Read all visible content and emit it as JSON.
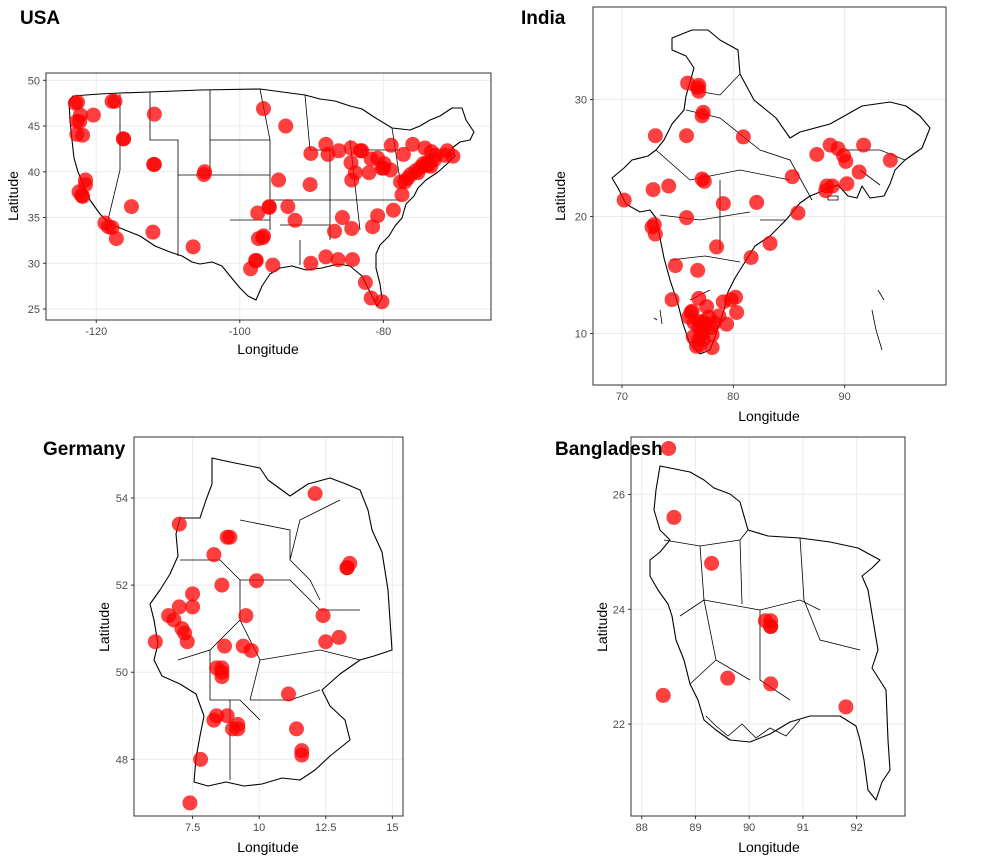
{
  "colors": {
    "point": "#ff0000",
    "grid": "#ebebeb",
    "frame": "#333333",
    "border": "#000000",
    "tick_text": "#4d4d4d"
  },
  "chart_data": [
    {
      "type": "scatter",
      "title": "USA",
      "xlabel": "Longitude",
      "ylabel": "Latitude",
      "xlim": [
        -127,
        -65
      ],
      "ylim": [
        23.8,
        50.8
      ],
      "xticks": [
        -120,
        -100,
        -80
      ],
      "yticks": [
        25,
        30,
        35,
        40,
        45,
        50
      ],
      "x": [
        -122.6,
        -122.3,
        -121.9,
        -122.7,
        -122.9,
        -120.4,
        -121.5,
        -116.2,
        -117.8,
        -111.9,
        -112.0,
        -105.0,
        -96.7,
        -93.6,
        -90.1,
        -87.7,
        -88.0,
        -86.2,
        -84.5,
        -83.0,
        -81.7,
        -80.0,
        -79.9,
        -77.0,
        -76.6,
        -75.2,
        -74.0,
        -73.9,
        -73.7,
        -72.7,
        -71.1,
        -71.4,
        -70.3,
        -77.4,
        -78.6,
        -80.8,
        -81.5,
        -84.4,
        -86.8,
        -90.1,
        -95.4,
        -96.8,
        -97.7,
        -98.5,
        -106.5,
        -112.1,
        -117.2,
        -118.3,
        -117.8,
        -121.9,
        -122.4,
        -80.2,
        -81.7,
        -82.5,
        -84.3,
        -86.3,
        -88.0,
        -85.7,
        -92.3,
        -90.2,
        -94.6,
        -95.9,
        -97.5,
        -104.9,
        -111.9,
        -116.2,
        -117.4,
        -122.7,
        -121.5,
        -93.3,
        -84.4,
        -83.9,
        -82.0,
        -80.8,
        -79.0,
        -77.6,
        -76.2,
        -75.5,
        -74.8,
        -74.4,
        -73.4,
        -72.9,
        -73.3,
        -74.2,
        -75.9,
        -77.2,
        -78.9,
        -80.2,
        -83.2,
        -84.5,
        -95.9,
        -96.7,
        -97.4,
        -97.8,
        -115.1,
        -118.8,
        -122.0,
        -122.2
      ],
      "y": [
        47.6,
        45.5,
        44.0,
        44.1,
        47.5,
        46.2,
        39.1,
        43.6,
        47.7,
        46.3,
        40.8,
        39.7,
        46.9,
        45.0,
        42.0,
        41.9,
        43.0,
        42.3,
        42.6,
        42.3,
        41.4,
        40.4,
        40.9,
        38.9,
        39.3,
        39.9,
        40.7,
        41.0,
        40.8,
        41.8,
        42.3,
        41.8,
        41.7,
        37.5,
        35.8,
        35.2,
        34.0,
        33.8,
        33.5,
        30.0,
        29.8,
        32.8,
        30.3,
        29.4,
        31.8,
        33.4,
        32.7,
        34.0,
        33.9,
        37.3,
        37.8,
        25.8,
        26.2,
        27.9,
        30.4,
        30.4,
        30.7,
        35.0,
        34.7,
        38.6,
        39.1,
        36.2,
        35.5,
        40.0,
        40.8,
        43.6,
        47.7,
        45.5,
        38.6,
        36.2,
        39.1,
        39.9,
        39.9,
        41.5,
        40.2,
        38.9,
        39.7,
        40.1,
        40.5,
        40.9,
        40.6,
        41.3,
        42.2,
        42.6,
        43.0,
        41.9,
        42.9,
        40.4,
        42.3,
        41.0,
        36.1,
        33.0,
        32.7,
        30.3,
        36.2,
        34.4,
        37.4,
        46.2
      ]
    },
    {
      "type": "scatter",
      "title": "India",
      "xlabel": "Longitude",
      "ylabel": "Latitude",
      "xlim": [
        67.4,
        99.1
      ],
      "ylim": [
        5.6,
        37.9
      ],
      "xticks": [
        70,
        80,
        90
      ],
      "yticks": [
        10,
        20,
        30
      ],
      "x": [
        76.8,
        75.9,
        76.9,
        77.2,
        77.3,
        75.8,
        77.2,
        80.9,
        73.0,
        72.8,
        74.2,
        75.8,
        77.4,
        79.1,
        82.1,
        85.3,
        88.4,
        88.3,
        88.7,
        89.4,
        89.9,
        90.1,
        91.7,
        94.1,
        85.8,
        81.6,
        83.3,
        78.5,
        76.8,
        74.8,
        74.5,
        73.0,
        72.7,
        72.9,
        70.2,
        76.9,
        77.6,
        76.3,
        76.0,
        77.0,
        76.5,
        76.9,
        77.2,
        77.5,
        78.0,
        78.3,
        78.7,
        79.1,
        79.8,
        80.2,
        80.3,
        79.4,
        78.1,
        77.3,
        76.7,
        76.4,
        76.9,
        77.0,
        77.2,
        77.3,
        77.8,
        78.1,
        76.2,
        88.9,
        87.5,
        90.2,
        91.3,
        76.9
      ],
      "y": [
        31.0,
        31.4,
        30.7,
        28.6,
        28.9,
        26.9,
        23.2,
        26.8,
        26.9,
        22.3,
        22.6,
        19.9,
        23.0,
        21.1,
        21.2,
        23.4,
        22.6,
        22.2,
        26.1,
        25.8,
        25.2,
        24.7,
        26.1,
        24.8,
        20.3,
        16.5,
        17.7,
        17.4,
        15.4,
        15.8,
        12.9,
        18.5,
        19.1,
        19.3,
        21.4,
        13.0,
        12.3,
        11.9,
        11.4,
        11.0,
        10.9,
        10.5,
        10.2,
        10.8,
        10.5,
        10.9,
        11.5,
        12.7,
        12.9,
        13.1,
        11.8,
        10.8,
        9.9,
        9.5,
        8.9,
        9.7,
        9.5,
        9.0,
        10.0,
        11.0,
        11.4,
        8.8,
        11.8,
        22.6,
        25.3,
        22.8,
        23.8,
        31.2
      ]
    },
    {
      "type": "scatter",
      "title": "Germany",
      "xlabel": "Longitude",
      "ylabel": "Latitude",
      "xlim": [
        5.3,
        15.4
      ],
      "ylim": [
        46.7,
        55.4
      ],
      "xticks": [
        7.5,
        10.0,
        12.5,
        15.0
      ],
      "yticks": [
        48,
        50,
        52,
        54
      ],
      "x": [
        12.1,
        7.0,
        8.8,
        8.9,
        8.3,
        7.5,
        8.6,
        9.9,
        7.0,
        7.5,
        6.8,
        7.1,
        6.6,
        7.3,
        6.1,
        7.2,
        9.5,
        12.4,
        13.3,
        13.4,
        13.3,
        13.0,
        12.5,
        8.7,
        8.6,
        8.6,
        8.6,
        8.4,
        9.4,
        9.7,
        11.1,
        11.4,
        11.6,
        11.6,
        8.8,
        9.2,
        8.3,
        8.4,
        7.8,
        9.0,
        9.2,
        7.4
      ],
      "y": [
        54.1,
        53.4,
        53.1,
        53.1,
        52.7,
        51.8,
        52.0,
        52.1,
        51.5,
        51.5,
        51.2,
        51.0,
        51.3,
        50.7,
        50.7,
        50.9,
        51.3,
        51.3,
        52.4,
        52.5,
        52.4,
        50.8,
        50.7,
        50.6,
        50.0,
        50.1,
        49.9,
        50.1,
        50.6,
        50.5,
        49.5,
        48.7,
        48.2,
        48.1,
        49.0,
        48.8,
        48.9,
        49.0,
        48.0,
        48.7,
        48.7,
        47.0
      ]
    },
    {
      "type": "scatter",
      "title": "Bangladesh",
      "xlabel": "Longitude",
      "ylabel": "Latitude",
      "xlim": [
        87.8,
        92.9
      ],
      "ylim": [
        20.4,
        27.0
      ],
      "xticks": [
        88,
        89,
        90,
        91,
        92
      ],
      "yticks": [
        22,
        24,
        26
      ],
      "x": [
        88.5,
        88.6,
        89.3,
        90.3,
        90.4,
        90.4,
        90.4,
        89.6,
        90.4,
        91.8,
        88.4
      ],
      "y": [
        26.8,
        25.6,
        24.8,
        23.8,
        23.7,
        23.8,
        23.7,
        22.8,
        22.7,
        22.3,
        22.5
      ]
    }
  ]
}
